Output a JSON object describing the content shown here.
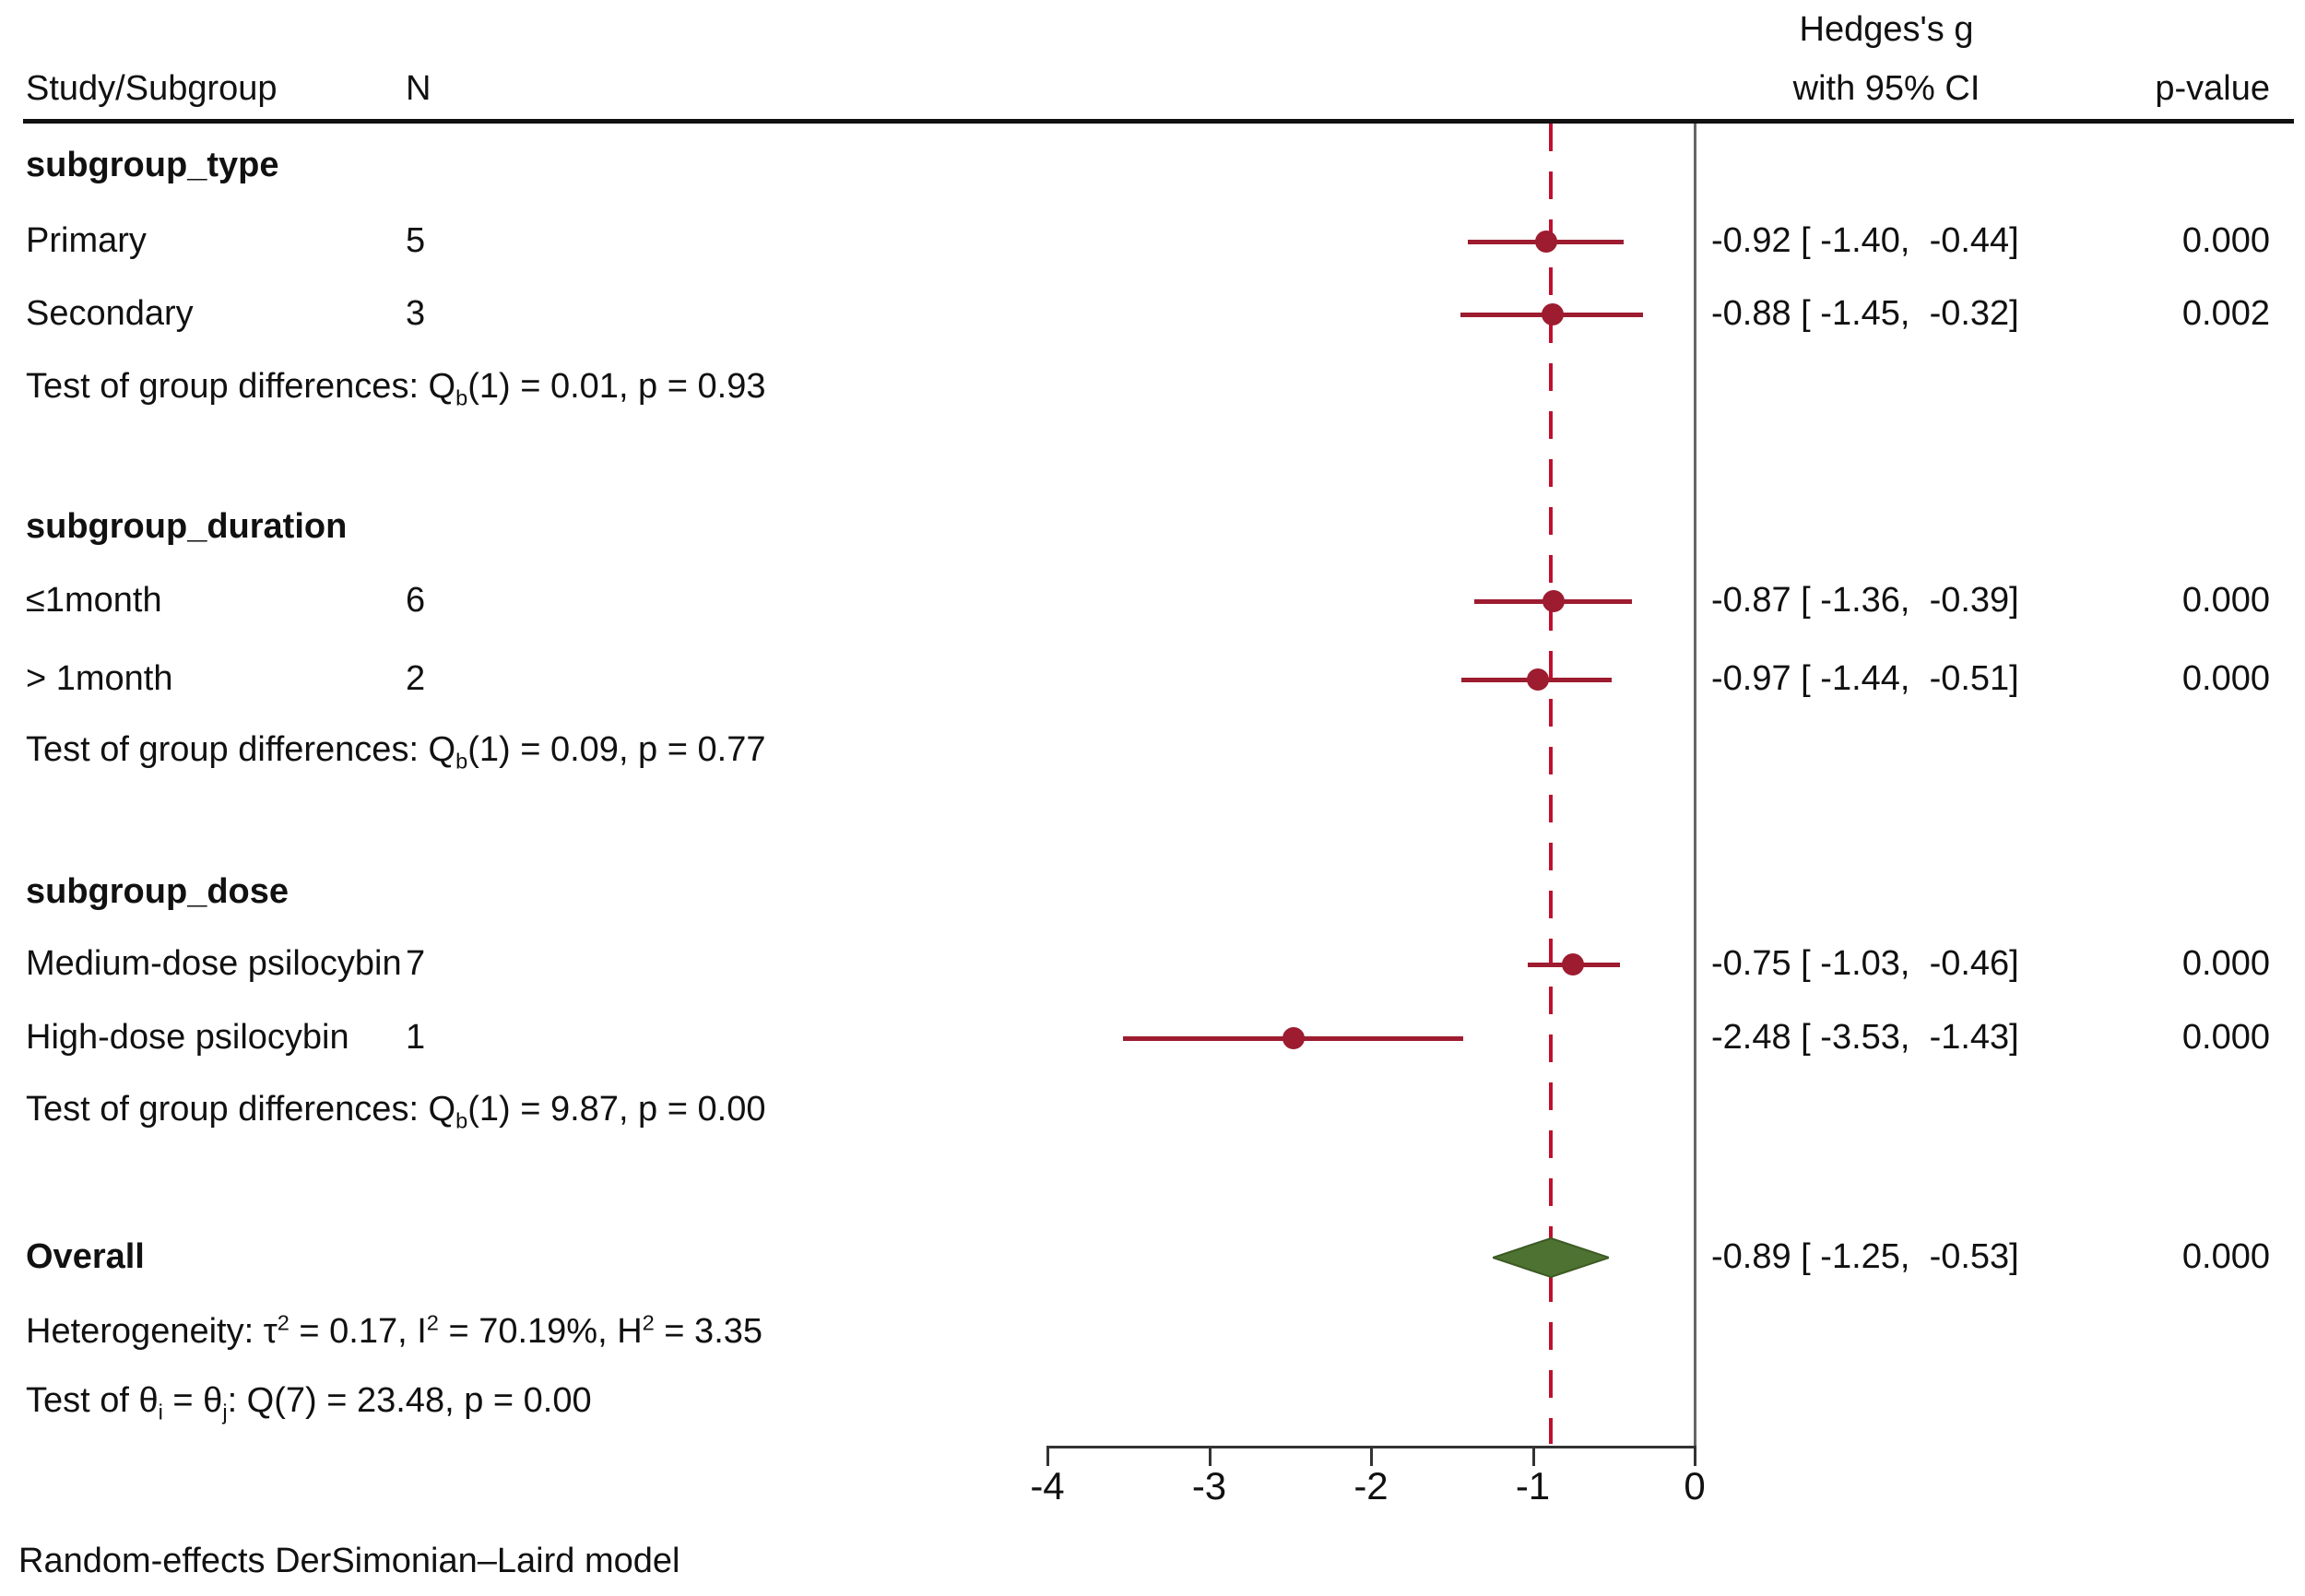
{
  "header": {
    "study": "Study/Subgroup",
    "n": "N",
    "effect_line1": "Hedges's g",
    "effect_line2": "with 95% CI",
    "p_value": "p-value"
  },
  "colors": {
    "ci": "#9d1c30",
    "reference_line": "#c0102f",
    "diamond_fill": "#4e7231",
    "diamond_stroke": "#3c5a24",
    "zero_line": "#666666",
    "axis": "#333333",
    "separator": "#111111",
    "text": "#111111"
  },
  "chart_data": {
    "type": "forest",
    "effect_measure": "Hedges's g",
    "xlim": [
      -4,
      0
    ],
    "x_ticks": [
      "-4",
      "-3",
      "-2",
      "-1",
      "0"
    ],
    "x_tick_values": [
      -4,
      -3,
      -2,
      -1,
      0
    ],
    "reference_line_x": -0.89,
    "grid": false,
    "sections": [
      {
        "heading": "subgroup_type",
        "rows": [
          {
            "label": "Primary",
            "n": "5",
            "effect": -0.92,
            "ci_low": -1.4,
            "ci_high": -0.44,
            "ci_text": "-0.92 [ -1.40,  -0.44]",
            "p_value": "0.000"
          },
          {
            "label": "Secondary",
            "n": "3",
            "effect": -0.88,
            "ci_low": -1.45,
            "ci_high": -0.32,
            "ci_text": "-0.88 [ -1.45,  -0.32]",
            "p_value": "0.002"
          }
        ],
        "test_line": "Test of group differences: Q{_b}(1) = 0.01, p = 0.93"
      },
      {
        "heading": "subgroup_duration",
        "rows": [
          {
            "label": "≤1month",
            "n": "6",
            "effect": -0.87,
            "ci_low": -1.36,
            "ci_high": -0.39,
            "ci_text": "-0.87 [ -1.36,  -0.39]",
            "p_value": "0.000"
          },
          {
            "label": "> 1month",
            "n": "2",
            "effect": -0.97,
            "ci_low": -1.44,
            "ci_high": -0.51,
            "ci_text": "-0.97 [ -1.44,  -0.51]",
            "p_value": "0.000"
          }
        ],
        "test_line": "Test of group differences: Q{_b}(1) = 0.09, p = 0.77"
      },
      {
        "heading": "subgroup_dose",
        "rows": [
          {
            "label": "Medium-dose psilocybin",
            "n": "7",
            "effect": -0.75,
            "ci_low": -1.03,
            "ci_high": -0.46,
            "ci_text": "-0.75 [ -1.03,  -0.46]",
            "p_value": "0.000"
          },
          {
            "label": "High-dose psilocybin",
            "n": "1",
            "effect": -2.48,
            "ci_low": -3.53,
            "ci_high": -1.43,
            "ci_text": "-2.48 [ -3.53,  -1.43]",
            "p_value": "0.000"
          }
        ],
        "test_line": "Test of group differences: Q{_b}(1) = 9.87, p = 0.00"
      }
    ],
    "overall": {
      "label": "Overall",
      "effect": -0.89,
      "ci_low": -1.25,
      "ci_high": -0.53,
      "ci_text": "-0.89 [ -1.25,  -0.53]",
      "p_value": "0.000"
    },
    "heterogeneity_line": "Heterogeneity: τ{^2} = 0.17, I{^2} = 70.19%, H{^2} = 3.35",
    "theta_test_line": "Test of θ{_i} = θ{_j}: Q(7) = 23.48, p = 0.00",
    "footnote": "Random-effects DerSimonian–Laird model"
  }
}
